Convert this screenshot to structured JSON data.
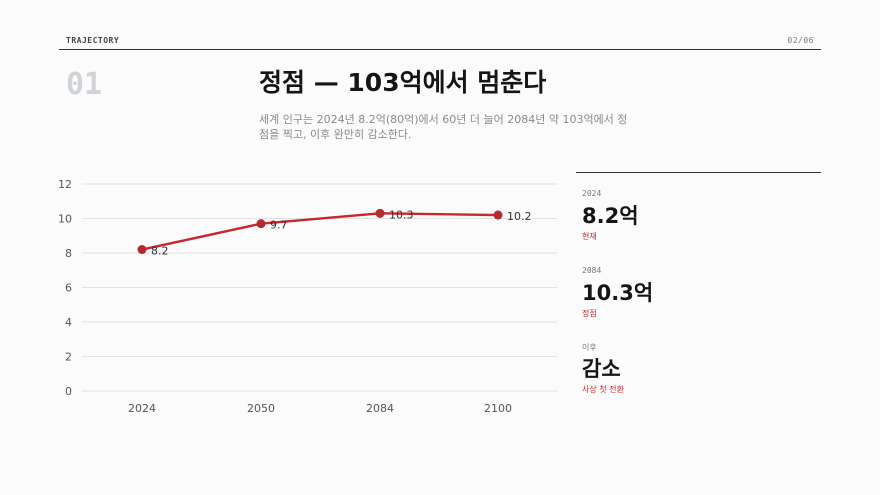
{
  "header": {
    "brand": "TRAJECTORY",
    "page": "02/06"
  },
  "slide": {
    "number": "01",
    "title": "정점 — 103억에서 멈춘다",
    "subtitle": "세계 인구는 2024년 8.2억(80억)에서 60년 더 늘어 2084년 약 103억에서 정점을 찍고, 이후 완만히 감소한다."
  },
  "chart_data": {
    "type": "line",
    "categories": [
      "2024",
      "2050",
      "2084",
      "2100"
    ],
    "values": [
      8.2,
      9.7,
      10.3,
      10.2
    ],
    "data_labels": [
      "8.2",
      "9.7",
      "10.3",
      "10.2"
    ],
    "ylim": [
      0,
      12
    ],
    "yticks": [
      0,
      2,
      4,
      6,
      8,
      10,
      12
    ],
    "grid": true,
    "line_color": "#c8272c",
    "grid_color": "#e2e2e2"
  },
  "stats": [
    {
      "label": "2024",
      "value": "8.2억",
      "note": "현재"
    },
    {
      "label": "2084",
      "value": "10.3억",
      "note": "정점"
    },
    {
      "label": "이후",
      "value": "감소",
      "note": "사상 첫 전환"
    }
  ],
  "colors": {
    "accent": "#c8272c",
    "rule": "#333333"
  }
}
